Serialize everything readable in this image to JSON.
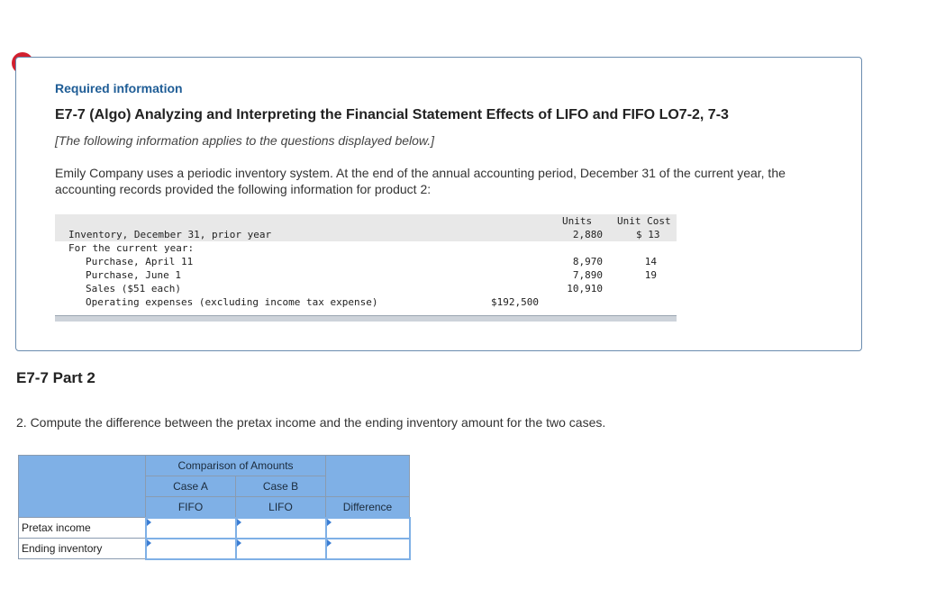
{
  "alert": {
    "icon": "exclamation-icon",
    "glyph": "!"
  },
  "info": {
    "required_label": "Required information",
    "title": "E7-7 (Algo) Analyzing and Interpreting the Financial Statement Effects of LIFO and FIFO LO7-2, 7-3",
    "note": "[The following information applies to the questions displayed below.]",
    "description": "Emily Company uses a periodic inventory system. At the end of the annual accounting period, December 31 of the current year, the accounting records provided the following information for product 2:",
    "table": {
      "headers": {
        "units": "Units",
        "unit_cost": "Unit Cost"
      },
      "rows": [
        {
          "label": "Inventory, December 31, prior year",
          "amount": "",
          "units": "2,880",
          "unit_cost": "$ 13"
        },
        {
          "label": "For the current year:",
          "amount": "",
          "units": "",
          "unit_cost": ""
        },
        {
          "label": "Purchase, April 11",
          "amount": "",
          "units": "8,970",
          "unit_cost": "14"
        },
        {
          "label": "Purchase, June 1",
          "amount": "",
          "units": "7,890",
          "unit_cost": "19"
        },
        {
          "label": "Sales ($51 each)",
          "amount": "",
          "units": "10,910",
          "unit_cost": ""
        },
        {
          "label": "Operating expenses (excluding income tax expense)",
          "amount": "$192,500",
          "units": "",
          "unit_cost": ""
        }
      ]
    }
  },
  "part": {
    "title": "E7-7 Part 2",
    "question": "2. Compute the difference between the pretax income and the ending inventory amount for the two cases."
  },
  "answer_table": {
    "group_header": "Comparison of Amounts",
    "case_a": "Case A",
    "case_b": "Case B",
    "fifo": "FIFO",
    "lifo": "LIFO",
    "difference": "Difference",
    "rows": [
      {
        "label": "Pretax income",
        "fifo": "",
        "lifo": "",
        "difference": ""
      },
      {
        "label": "Ending inventory",
        "fifo": "",
        "lifo": "",
        "difference": ""
      }
    ]
  }
}
